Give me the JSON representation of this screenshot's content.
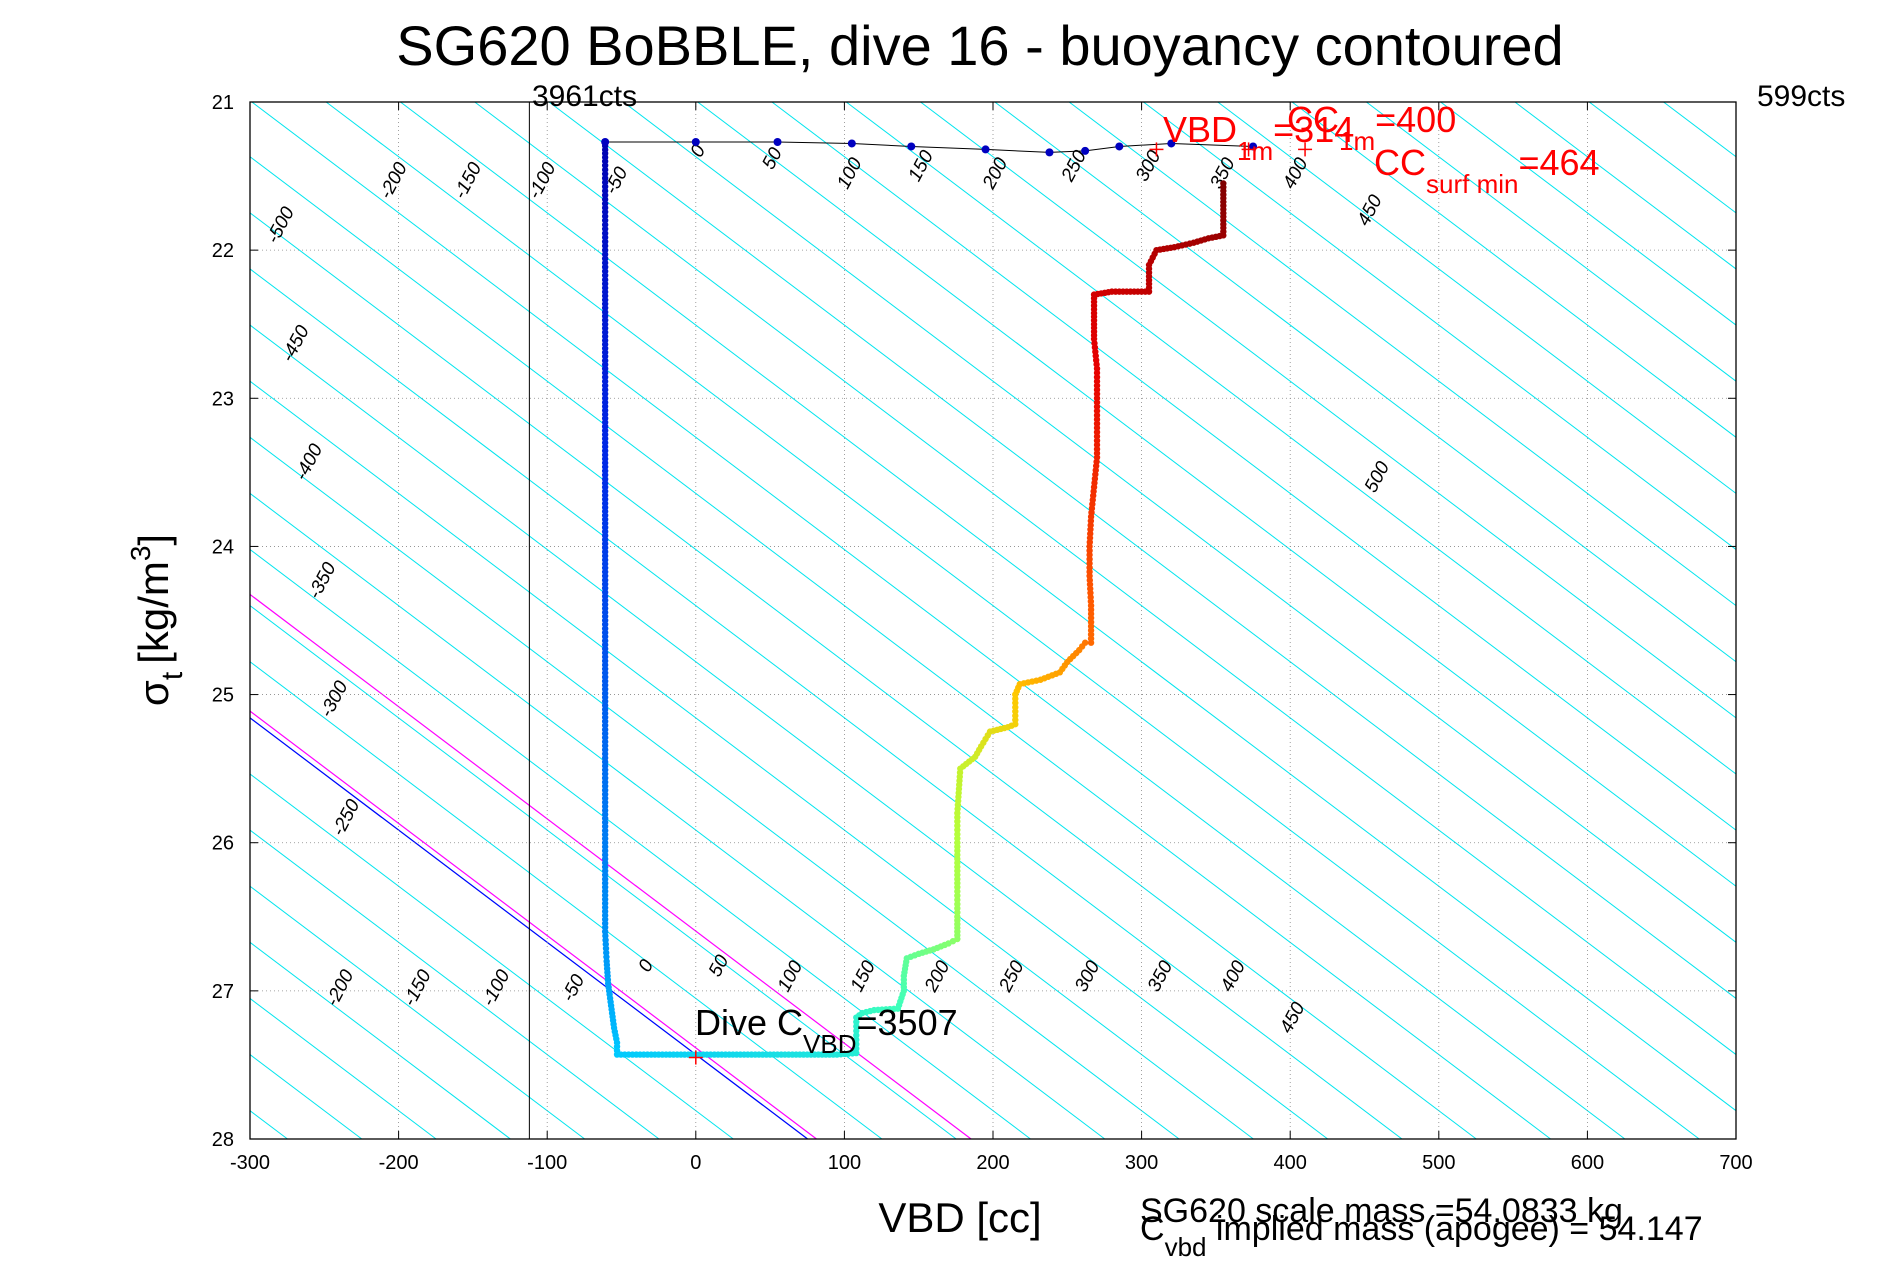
{
  "chart_data": {
    "type": "scatter",
    "title": "SG620 BoBBLE, dive 16 - buoyancy contoured",
    "xlabel": "VBD [cc]",
    "ylabel": {
      "main": "σ",
      "sub": "t",
      "unit": "[kg/m",
      "sup": "3",
      "close": "]"
    },
    "xlim": [
      -300,
      700
    ],
    "ylim": [
      21,
      28
    ],
    "y_reversed": true,
    "grid": true,
    "xticks": [
      -300,
      -200,
      -100,
      0,
      100,
      200,
      300,
      400,
      500,
      600,
      700
    ],
    "yticks": [
      21,
      22,
      23,
      24,
      25,
      26,
      27,
      28
    ],
    "contours": {
      "slope_cc_per_sigma": 132,
      "levels": [
        -500,
        -450,
        -400,
        -350,
        -300,
        -250,
        -200,
        -150,
        -100,
        -50,
        0,
        50,
        100,
        150,
        200,
        250,
        300,
        350,
        400,
        450,
        500
      ],
      "zero_line_color": "#0000ff",
      "magenta_offsets": [
        6,
        110
      ],
      "magenta_color": "#ff00ff",
      "contour_color": "#00e5ee",
      "labels_top": [
        {
          "text": "-200",
          "x": -200,
          "y": 21.55
        },
        {
          "text": "-150",
          "x": -150,
          "y": 21.55
        },
        {
          "text": "-100",
          "x": -100,
          "y": 21.55
        },
        {
          "text": "-50",
          "x": -50,
          "y": 21.55
        },
        {
          "text": "0",
          "x": 5,
          "y": 21.35
        },
        {
          "text": "50",
          "x": 55,
          "y": 21.4
        },
        {
          "text": "100",
          "x": 107,
          "y": 21.5
        },
        {
          "text": "150",
          "x": 155,
          "y": 21.45
        },
        {
          "text": "200",
          "x": 205,
          "y": 21.5
        },
        {
          "text": "250",
          "x": 258,
          "y": 21.45
        },
        {
          "text": "300",
          "x": 308,
          "y": 21.45
        },
        {
          "text": "350",
          "x": 358,
          "y": 21.5
        },
        {
          "text": "400",
          "x": 407,
          "y": 21.5
        },
        {
          "text": "450",
          "x": 457,
          "y": 21.75
        }
      ],
      "labels_left": [
        {
          "text": "-500",
          "x": -276,
          "y": 21.85
        },
        {
          "text": "-450",
          "x": -266,
          "y": 22.65
        },
        {
          "text": "-400",
          "x": -257,
          "y": 23.45
        },
        {
          "text": "-350",
          "x": -248,
          "y": 24.25
        },
        {
          "text": "-300",
          "x": -240,
          "y": 25.05
        },
        {
          "text": "-250",
          "x": -232,
          "y": 25.85
        }
      ],
      "labels_bottom": [
        {
          "text": "-200",
          "x": -236,
          "y": 27.0
        },
        {
          "text": "-150",
          "x": -184,
          "y": 27.0
        },
        {
          "text": "-100",
          "x": -131,
          "y": 27.0
        },
        {
          "text": "-50",
          "x": -79,
          "y": 27.0
        },
        {
          "text": "0",
          "x": -30,
          "y": 26.85
        },
        {
          "text": "50",
          "x": 19,
          "y": 26.85
        },
        {
          "text": "100",
          "x": 67,
          "y": 26.92
        },
        {
          "text": "150",
          "x": 116,
          "y": 26.92
        },
        {
          "text": "200",
          "x": 166,
          "y": 26.92
        },
        {
          "text": "250",
          "x": 216,
          "y": 26.92
        },
        {
          "text": "300",
          "x": 267,
          "y": 26.92
        },
        {
          "text": "350",
          "x": 316,
          "y": 26.92
        },
        {
          "text": "400",
          "x": 365,
          "y": 26.92
        },
        {
          "text": "450",
          "x": 405,
          "y": 27.2
        },
        {
          "text": "500",
          "x": 462,
          "y": 23.55
        }
      ]
    },
    "vertical_line": {
      "x": -112,
      "top_label": "3961cts"
    },
    "right_top_label": "599cts",
    "series": [
      {
        "segment": "descent",
        "color_from": "#0000b0",
        "color_to": "#1010e0",
        "points": [
          [
            -61,
            21.27
          ],
          [
            -61,
            21.4
          ],
          [
            -61,
            21.6
          ],
          [
            -61,
            21.8
          ],
          [
            -61,
            22.0
          ],
          [
            -61,
            22.2
          ],
          [
            -61,
            22.5
          ],
          [
            -61,
            22.8
          ],
          [
            -61,
            23.0
          ],
          [
            -61,
            23.3
          ],
          [
            -61,
            23.6
          ],
          [
            -61,
            23.9
          ],
          [
            -61,
            24.2
          ],
          [
            -61,
            24.5
          ],
          [
            -61,
            24.8
          ],
          [
            -61,
            25.1
          ],
          [
            -61,
            25.4
          ],
          [
            -61,
            25.7
          ],
          [
            -61,
            26.0
          ],
          [
            -61,
            26.3
          ],
          [
            -61,
            26.6
          ],
          [
            -60,
            26.8
          ],
          [
            -59,
            26.95
          ],
          [
            -57,
            27.1
          ],
          [
            -55,
            27.25
          ],
          [
            -53,
            27.35
          ]
        ]
      },
      {
        "segment": "bottom",
        "points": [
          [
            -53,
            27.43
          ],
          [
            -40,
            27.43
          ],
          [
            -25,
            27.43
          ],
          [
            -10,
            27.43
          ],
          [
            5,
            27.43
          ],
          [
            20,
            27.43
          ],
          [
            35,
            27.43
          ],
          [
            50,
            27.43
          ],
          [
            65,
            27.43
          ],
          [
            80,
            27.43
          ],
          [
            95,
            27.43
          ],
          [
            108,
            27.42
          ]
        ]
      },
      {
        "segment": "climb",
        "points": [
          [
            108,
            27.3
          ],
          [
            108,
            27.18
          ],
          [
            112,
            27.15
          ],
          [
            120,
            27.13
          ],
          [
            136,
            27.12
          ],
          [
            140,
            27.0
          ],
          [
            140,
            26.9
          ],
          [
            142,
            26.78
          ],
          [
            150,
            26.75
          ],
          [
            160,
            26.72
          ],
          [
            170,
            26.68
          ],
          [
            176,
            26.65
          ],
          [
            176,
            26.5
          ],
          [
            176,
            26.3
          ],
          [
            176,
            26.0
          ],
          [
            176,
            25.8
          ],
          [
            178,
            25.5
          ],
          [
            188,
            25.42
          ],
          [
            192,
            25.35
          ],
          [
            198,
            25.25
          ],
          [
            210,
            25.22
          ],
          [
            215,
            25.2
          ],
          [
            215,
            25.0
          ],
          [
            218,
            24.93
          ],
          [
            232,
            24.9
          ],
          [
            245,
            24.85
          ],
          [
            250,
            24.78
          ],
          [
            258,
            24.7
          ],
          [
            262,
            24.65
          ],
          [
            266,
            24.65
          ],
          [
            266,
            24.4
          ],
          [
            265,
            24.2
          ],
          [
            265,
            24.0
          ],
          [
            266,
            23.8
          ],
          [
            268,
            23.6
          ],
          [
            270,
            23.4
          ],
          [
            270,
            23.2
          ],
          [
            270,
            23.0
          ],
          [
            270,
            22.8
          ],
          [
            268,
            22.6
          ],
          [
            268,
            22.45
          ],
          [
            268,
            22.3
          ],
          [
            280,
            22.28
          ],
          [
            295,
            22.28
          ],
          [
            305,
            22.28
          ],
          [
            305,
            22.1
          ],
          [
            310,
            22.0
          ],
          [
            322,
            21.98
          ],
          [
            335,
            21.95
          ],
          [
            345,
            21.92
          ],
          [
            355,
            21.9
          ],
          [
            355,
            21.8
          ],
          [
            355,
            21.7
          ],
          [
            355,
            21.6
          ],
          [
            355,
            21.55
          ]
        ]
      },
      {
        "segment": "surface",
        "color": "#0000c0",
        "points": [
          [
            -61,
            21.27
          ],
          [
            0,
            21.27
          ],
          [
            55,
            21.27
          ],
          [
            105,
            21.28
          ],
          [
            145,
            21.3
          ],
          [
            195,
            21.32
          ],
          [
            238,
            21.34
          ],
          [
            262,
            21.33
          ],
          [
            285,
            21.3
          ],
          [
            320,
            21.28
          ],
          [
            375,
            21.3
          ]
        ]
      }
    ],
    "red_markers": [
      {
        "x": 310,
        "y": 21.32
      },
      {
        "x": 372,
        "y": 21.32
      },
      {
        "x": 410,
        "y": 21.32
      },
      {
        "x": 0,
        "y": 27.45
      }
    ],
    "annotations": {
      "vbd_1m_main": "VBD",
      "vbd_1m_sub": "1m",
      "vbd_1m_tail": "=314",
      "cc_main": "CC",
      "cc_sub": "1m",
      "cc_tail": "=400",
      "ccsurf_main": "CC",
      "ccsurf_sub": "surf min",
      "ccsurf_tail": "=464",
      "dive_main": "Dive C",
      "dive_sub": "VBD",
      "dive_tail": "=3507",
      "scale_mass": "SG620 scale mass =54.0833 kg",
      "implied_main": "C",
      "implied_sub": "vbd",
      "implied_tail": " implied mass (apogee) = 54.147"
    }
  }
}
